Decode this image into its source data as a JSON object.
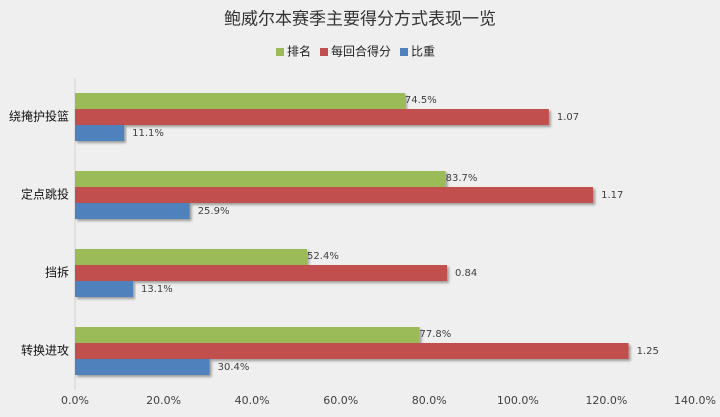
{
  "chart_data": {
    "type": "bar",
    "orientation": "horizontal",
    "title": "鲍威尔本赛季主要得分方式表现一览",
    "categories": [
      "绕掩护投篮",
      "定点跳投",
      "挡拆",
      "转换进攻"
    ],
    "series": [
      {
        "name": "排名",
        "color": "#9bbb59",
        "values": [
          74.5,
          83.7,
          52.4,
          77.8
        ],
        "value_labels": [
          "74.5%",
          "83.7%",
          "52.4%",
          "77.8%"
        ]
      },
      {
        "name": "每回合得分",
        "color": "#c0504d",
        "values": [
          107,
          117,
          84,
          125
        ],
        "value_labels": [
          "1.07",
          "1.17",
          "0.84",
          "1.25"
        ]
      },
      {
        "name": "比重",
        "color": "#4f81bd",
        "values": [
          11.1,
          25.9,
          13.1,
          30.4
        ],
        "value_labels": [
          "11.1%",
          "25.9%",
          "13.1%",
          "30.4%"
        ]
      }
    ],
    "xlim": [
      0,
      140
    ],
    "xticks": [
      {
        "value": 0,
        "label": "0.0%"
      },
      {
        "value": 20,
        "label": "20.0%"
      },
      {
        "value": 40,
        "label": "40.0%"
      },
      {
        "value": 60,
        "label": "60.0%"
      },
      {
        "value": 80,
        "label": "80.0%"
      },
      {
        "value": 100,
        "label": "100.0%"
      },
      {
        "value": 120,
        "label": "120.0%"
      },
      {
        "value": 140,
        "label": "140.0%"
      }
    ],
    "legend": "top",
    "grid": false
  }
}
